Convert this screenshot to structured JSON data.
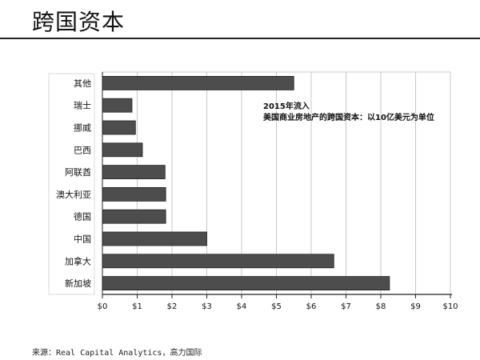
{
  "slide": {
    "title": "跨国资本",
    "source": "来源：Real Capital Analytics，高力国际"
  },
  "chart_data": {
    "type": "bar",
    "orientation": "horizontal",
    "annotation_lines": [
      "2015年流入",
      "美国商业房地产的跨国资本：以10亿美元为单位"
    ],
    "categories": [
      "其他",
      "瑞士",
      "挪威",
      "巴西",
      "阿联酋",
      "澳大利亚",
      "德国",
      "中国",
      "加拿大",
      "新加坡"
    ],
    "values": [
      5.5,
      0.85,
      0.95,
      1.15,
      1.8,
      1.82,
      1.82,
      3.0,
      6.65,
      8.25
    ],
    "xlim": [
      0,
      10
    ],
    "x_ticks": [
      0,
      1,
      2,
      3,
      4,
      5,
      6,
      7,
      8,
      9,
      10
    ],
    "x_tick_labels": [
      "$0",
      "$1",
      "$2",
      "$3",
      "$4",
      "$5",
      "$6",
      "$7",
      "$8",
      "$9",
      "$10"
    ],
    "grid": true,
    "bar_color": "#4d4d4d",
    "grid_color": "#c8c8c8"
  }
}
